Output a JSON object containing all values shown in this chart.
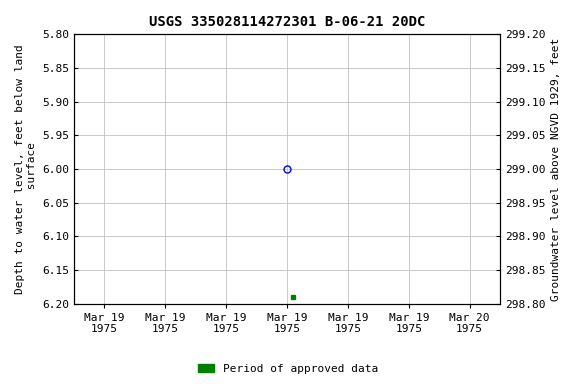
{
  "title": "USGS 335028114272301 B-06-21 20DC",
  "ylabel_left": "Depth to water level, feet below land\n surface",
  "ylabel_right": "Groundwater level above NGVD 1929, feet",
  "ylim_left_top": 5.8,
  "ylim_left_bottom": 6.2,
  "ylim_right_top": 299.2,
  "ylim_right_bottom": 298.8,
  "yticks_left": [
    5.8,
    5.85,
    5.9,
    5.95,
    6.0,
    6.05,
    6.1,
    6.15,
    6.2
  ],
  "yticks_right": [
    299.2,
    299.15,
    299.1,
    299.05,
    299.0,
    298.95,
    298.9,
    298.85,
    298.8
  ],
  "ytick_labels_left": [
    "5.80",
    "5.85",
    "5.90",
    "5.95",
    "6.00",
    "6.05",
    "6.10",
    "6.15",
    "6.20"
  ],
  "ytick_labels_right": [
    "299.20",
    "299.15",
    "299.10",
    "299.05",
    "299.00",
    "298.95",
    "298.90",
    "298.85",
    "298.80"
  ],
  "x_data_blue": [
    3.5
  ],
  "y_data_blue": [
    6.0
  ],
  "x_data_green": [
    3.6
  ],
  "y_data_green": [
    6.19
  ],
  "xlim": [
    0,
    7
  ],
  "xtick_positions": [
    0.5,
    1.5,
    2.5,
    3.5,
    4.5,
    5.5,
    6.5
  ],
  "xtick_labels": [
    "Mar 19\n1975",
    "Mar 19\n1975",
    "Mar 19\n1975",
    "Mar 19\n1975",
    "Mar 19\n1975",
    "Mar 19\n1975",
    "Mar 20\n1975"
  ],
  "legend_label": "Period of approved data",
  "legend_color": "#008000",
  "bg_color": "#ffffff",
  "grid_color": "#c0c0c0",
  "title_fontsize": 10,
  "axis_label_fontsize": 8,
  "tick_fontsize": 8
}
